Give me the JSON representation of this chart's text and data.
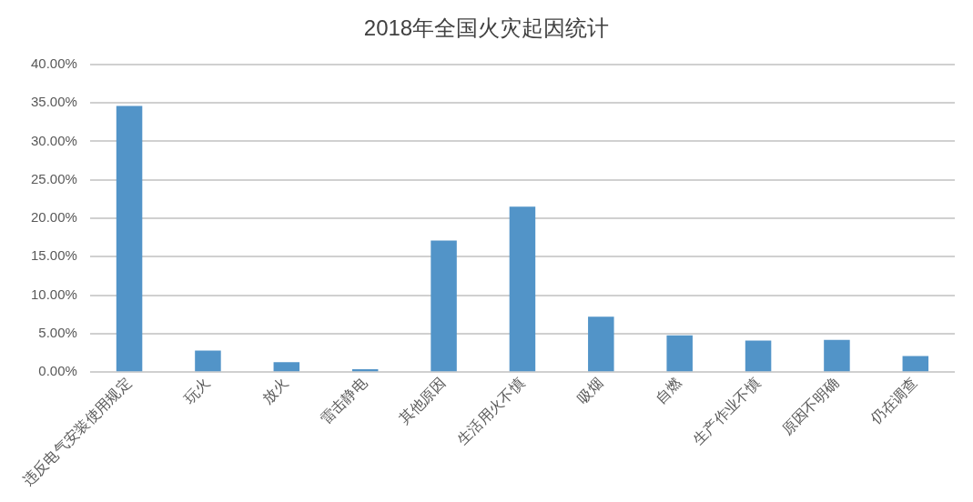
{
  "chart_data": {
    "type": "bar",
    "title": "2018年全国火灾起因统计",
    "categories": [
      "违反电气安装使用规定",
      "玩火",
      "放火",
      "雷击静电",
      "其他原因",
      "生活用火不慎",
      "吸烟",
      "自燃",
      "生产作业不慎",
      "原因不明确",
      "仍在调查"
    ],
    "values": [
      34.6,
      2.8,
      1.3,
      0.4,
      17.1,
      21.5,
      7.2,
      4.8,
      4.1,
      4.2,
      2.1
    ],
    "color": "#5294c8",
    "ylim": [
      0,
      40
    ],
    "yticks": [
      {
        "value": 0,
        "label": "0.00%"
      },
      {
        "value": 5,
        "label": "5.00%"
      },
      {
        "value": 10,
        "label": "10.00%"
      },
      {
        "value": 15,
        "label": "15.00%"
      },
      {
        "value": 20,
        "label": "20.00%"
      },
      {
        "value": 25,
        "label": "25.00%"
      },
      {
        "value": 30,
        "label": "30.00%"
      },
      {
        "value": 35,
        "label": "35.00%"
      },
      {
        "value": 40,
        "label": "40.00%"
      }
    ],
    "grid": "y",
    "legend": false
  }
}
